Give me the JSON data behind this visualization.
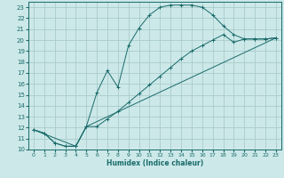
{
  "xlabel": "Humidex (Indice chaleur)",
  "bg_color": "#cce8e8",
  "line_color": "#1a6b6b",
  "grid_color": "#aacccc",
  "xlim": [
    -0.5,
    23.5
  ],
  "ylim": [
    10,
    23.5
  ],
  "xticks": [
    0,
    1,
    2,
    3,
    4,
    5,
    6,
    7,
    8,
    9,
    10,
    11,
    12,
    13,
    14,
    15,
    16,
    17,
    18,
    19,
    20,
    21,
    22,
    23
  ],
  "yticks": [
    10,
    11,
    12,
    13,
    14,
    15,
    16,
    17,
    18,
    19,
    20,
    21,
    22,
    23
  ],
  "line1_x": [
    0,
    1,
    2,
    3,
    4,
    5,
    6,
    7,
    8,
    9,
    10,
    11,
    12,
    13,
    14,
    15,
    16,
    17,
    18,
    19,
    20,
    21,
    22,
    23
  ],
  "line1_y": [
    11.8,
    11.5,
    10.6,
    10.3,
    10.3,
    12.1,
    15.2,
    17.2,
    15.7,
    19.5,
    21.1,
    22.3,
    23.0,
    23.2,
    23.2,
    23.2,
    23.0,
    22.3,
    21.3,
    20.5,
    20.1,
    20.1,
    20.1,
    20.2
  ],
  "line2_x": [
    0,
    1,
    2,
    3,
    4,
    5,
    6,
    7,
    8,
    9,
    10,
    11,
    12,
    13,
    14,
    15,
    16,
    17,
    18,
    19,
    20,
    21,
    22,
    23
  ],
  "line2_y": [
    11.8,
    11.5,
    10.6,
    10.3,
    10.3,
    12.1,
    12.1,
    12.8,
    13.5,
    14.3,
    15.1,
    15.9,
    16.7,
    17.5,
    18.3,
    19.0,
    19.5,
    20.0,
    20.5,
    19.8,
    20.1,
    20.1,
    20.1,
    20.2
  ],
  "line3_x": [
    0,
    4,
    5,
    23
  ],
  "line3_y": [
    11.8,
    10.3,
    12.1,
    20.2
  ]
}
